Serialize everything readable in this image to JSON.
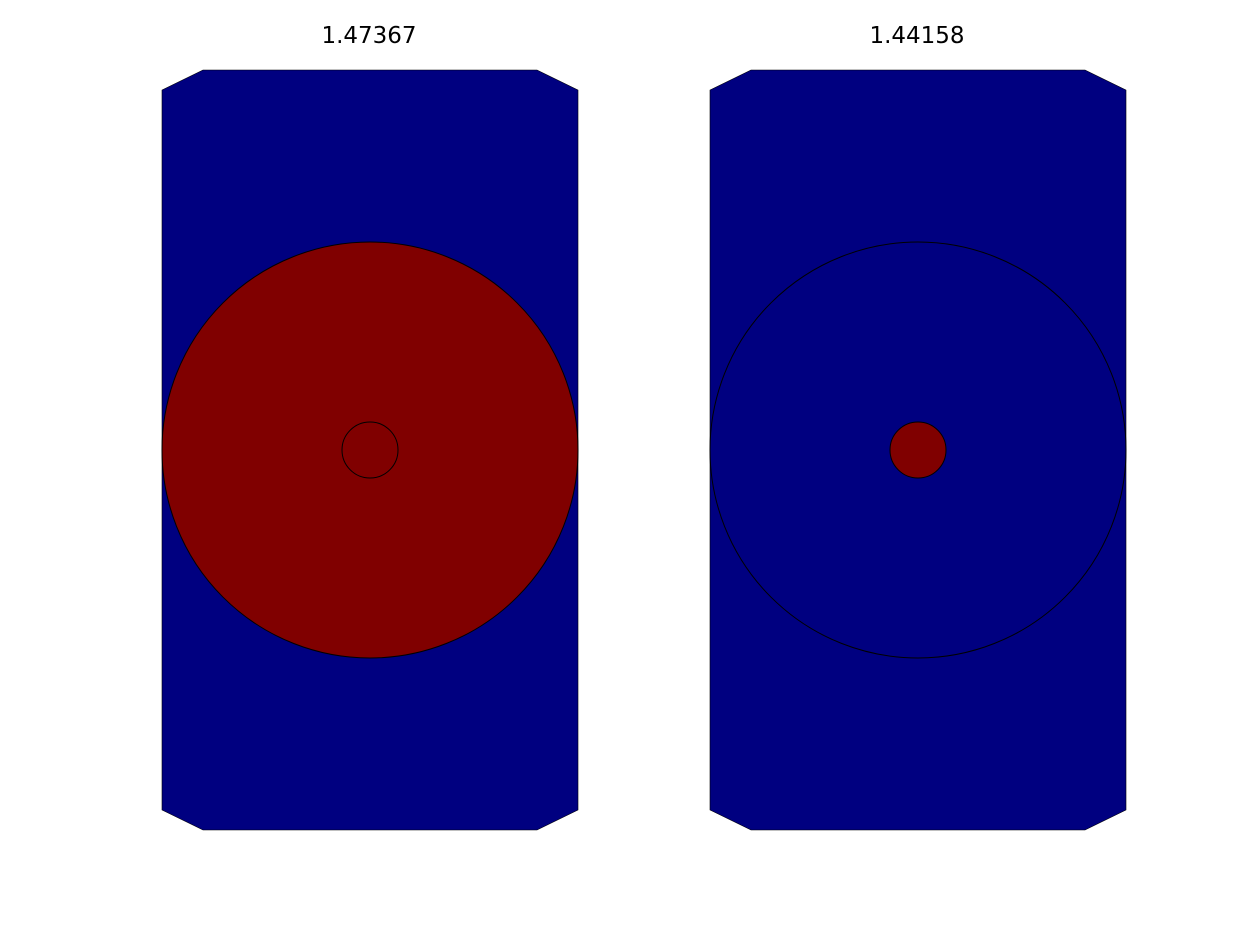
{
  "figure": {
    "background": "#ffffff",
    "domain_color": "#000080",
    "inclusion_color": "#800000",
    "outline_color": "#000000"
  },
  "panels": [
    {
      "title": "1.47367",
      "regions": [
        {
          "name": "outer-domain",
          "color": "#000080"
        },
        {
          "name": "large-disk",
          "color": "#800000"
        },
        {
          "name": "small-disk",
          "color": "#800000"
        }
      ]
    },
    {
      "title": "1.44158",
      "regions": [
        {
          "name": "outer-domain",
          "color": "#000080"
        },
        {
          "name": "large-disk",
          "color": "#000080"
        },
        {
          "name": "small-disk",
          "color": "#800000"
        }
      ]
    }
  ]
}
